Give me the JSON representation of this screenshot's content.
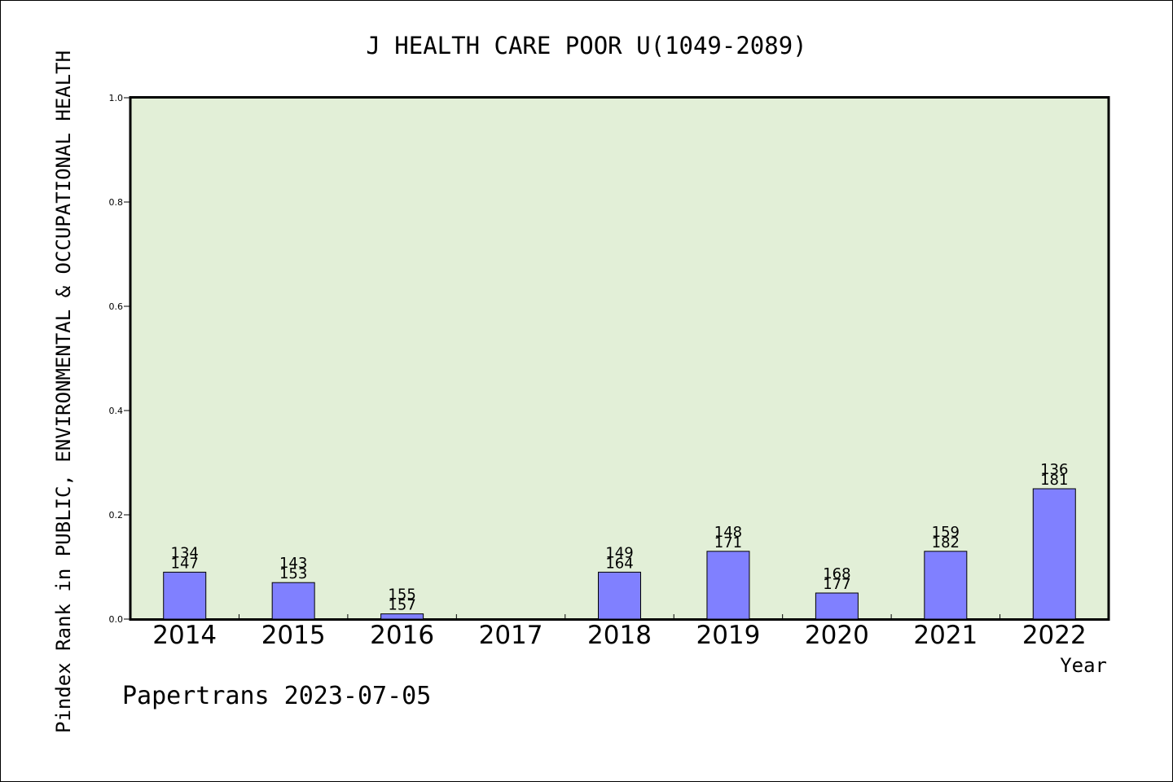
{
  "chart_data": {
    "type": "bar",
    "title": "J HEALTH CARE POOR U(1049-2089)",
    "ylabel": "Pindex Rank in PUBLIC, ENVIRONMENTAL & OCCUPATIONAL HEALTH",
    "xlabel": "Year",
    "footer": "Papertrans 2023-07-05",
    "ylim": [
      0,
      1.0
    ],
    "y_ticks": [
      "0.0",
      "0.2",
      "0.4",
      "0.6",
      "0.8",
      "1.0"
    ],
    "categories": [
      "2014",
      "2015",
      "2016",
      "2017",
      "2018",
      "2019",
      "2020",
      "2021",
      "2022"
    ],
    "values": [
      0.09,
      0.07,
      0.01,
      0,
      0.09,
      0.13,
      0.05,
      0.13,
      0.25
    ],
    "label_top": [
      "134",
      "143",
      "155",
      "",
      "149",
      "148",
      "168",
      "159",
      "136"
    ],
    "label_bottom": [
      "147",
      "153",
      "157",
      "",
      "164",
      "171",
      "177",
      "182",
      "181"
    ],
    "plot_background": "#e2efd7",
    "bar_color": "#8080ff",
    "grid": false
  }
}
